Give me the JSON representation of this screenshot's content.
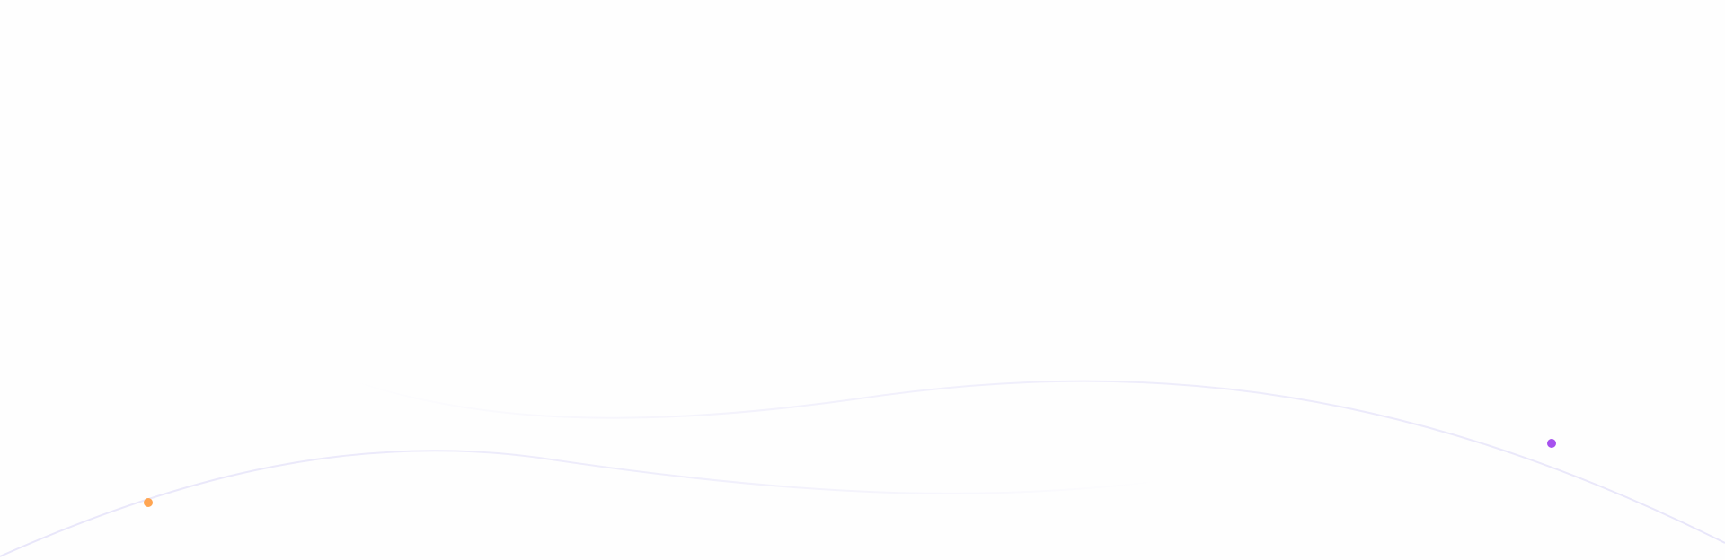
{
  "decoration": {
    "line_color": "#e8e6fa",
    "dots": [
      {
        "name": "orange-dot",
        "color": "#ffa552"
      },
      {
        "name": "purple-dot",
        "color": "#a651ee"
      }
    ]
  }
}
